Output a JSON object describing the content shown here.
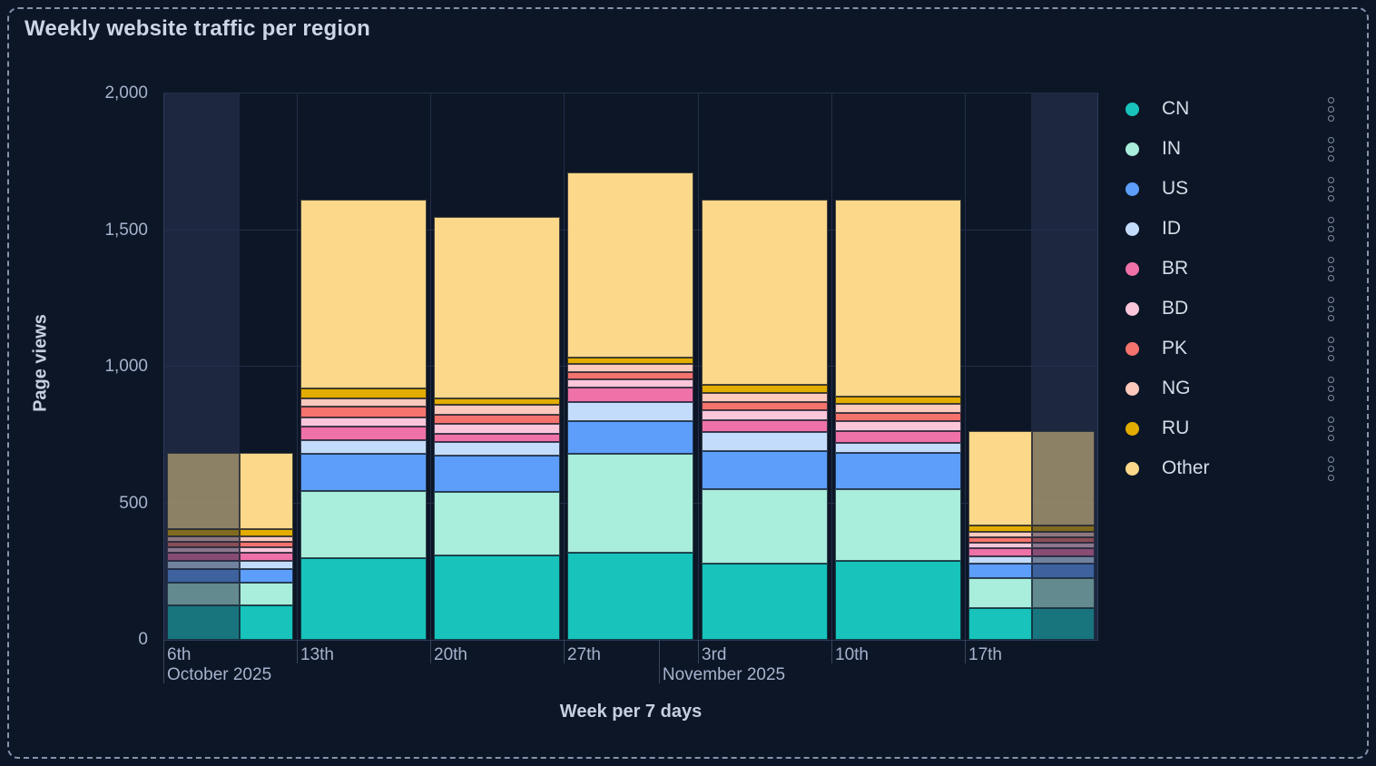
{
  "title": "Weekly website traffic per region",
  "chart_data": {
    "type": "bar",
    "stacked": true,
    "title": "Weekly website traffic per region",
    "xlabel": "Week per 7 days",
    "ylabel": "Page views",
    "ylim": [
      0,
      2000
    ],
    "grid": true,
    "legend_position": "right",
    "yticks": [
      {
        "value": 0,
        "label": "0"
      },
      {
        "value": 500,
        "label": "500"
      },
      {
        "value": 1000,
        "label": "1,000"
      },
      {
        "value": 1500,
        "label": "1,500"
      },
      {
        "value": 2000,
        "label": "2,000"
      }
    ],
    "categories": [
      "6th",
      "13th",
      "20th",
      "27th",
      "3rd",
      "10th",
      "17th"
    ],
    "month_labels": [
      {
        "label": "October 2025",
        "frac": 0.0
      },
      {
        "label": "November 2025",
        "frac": 0.53
      }
    ],
    "series": [
      {
        "name": "CN",
        "color": "#17C3BB",
        "values": [
          125,
          300,
          310,
          320,
          280,
          290,
          115
        ]
      },
      {
        "name": "IN",
        "color": "#A9EDDC",
        "values": [
          85,
          245,
          230,
          360,
          270,
          260,
          110
        ]
      },
      {
        "name": "US",
        "color": "#5D9EFA",
        "values": [
          50,
          135,
          135,
          120,
          140,
          135,
          55
        ]
      },
      {
        "name": "ID",
        "color": "#C4DCFB",
        "values": [
          30,
          50,
          50,
          70,
          70,
          35,
          25
        ]
      },
      {
        "name": "BR",
        "color": "#EE72A8",
        "values": [
          30,
          50,
          30,
          55,
          45,
          45,
          30
        ]
      },
      {
        "name": "BD",
        "color": "#FBC6DA",
        "values": [
          20,
          35,
          35,
          30,
          35,
          35,
          20
        ]
      },
      {
        "name": "PK",
        "color": "#F5736D",
        "values": [
          20,
          40,
          35,
          25,
          30,
          30,
          20
        ]
      },
      {
        "name": "NG",
        "color": "#FEC9BD",
        "values": [
          20,
          30,
          35,
          30,
          35,
          35,
          20
        ]
      },
      {
        "name": "RU",
        "color": "#E2AC00",
        "values": [
          25,
          35,
          25,
          25,
          30,
          25,
          25
        ]
      },
      {
        "name": "Other",
        "color": "#FBD88A",
        "values": [
          280,
          690,
          665,
          675,
          675,
          720,
          345
        ]
      }
    ],
    "totals": [
      685,
      1610,
      1550,
      1710,
      1610,
      1610,
      765
    ],
    "faded_bar_ranges": {
      "0": [
        0.0,
        0.575
      ],
      "6": [
        0.504,
        1.0
      ]
    },
    "highlight_regions": [
      [
        0.0,
        0.0816
      ],
      [
        0.9282,
        1.0
      ]
    ]
  },
  "legend": {
    "menu_icon": "kebab-vertical-dots"
  },
  "colors": {
    "background": "#0D1626",
    "highlight_band": "#1D2740",
    "gridline": "#232E49",
    "axis_line": "#2E3A57",
    "tick_label": "#A7B2CD",
    "axis_title": "#C6D0E0",
    "panel_title": "#CBD5E5",
    "panel_border": "#8693AE"
  }
}
